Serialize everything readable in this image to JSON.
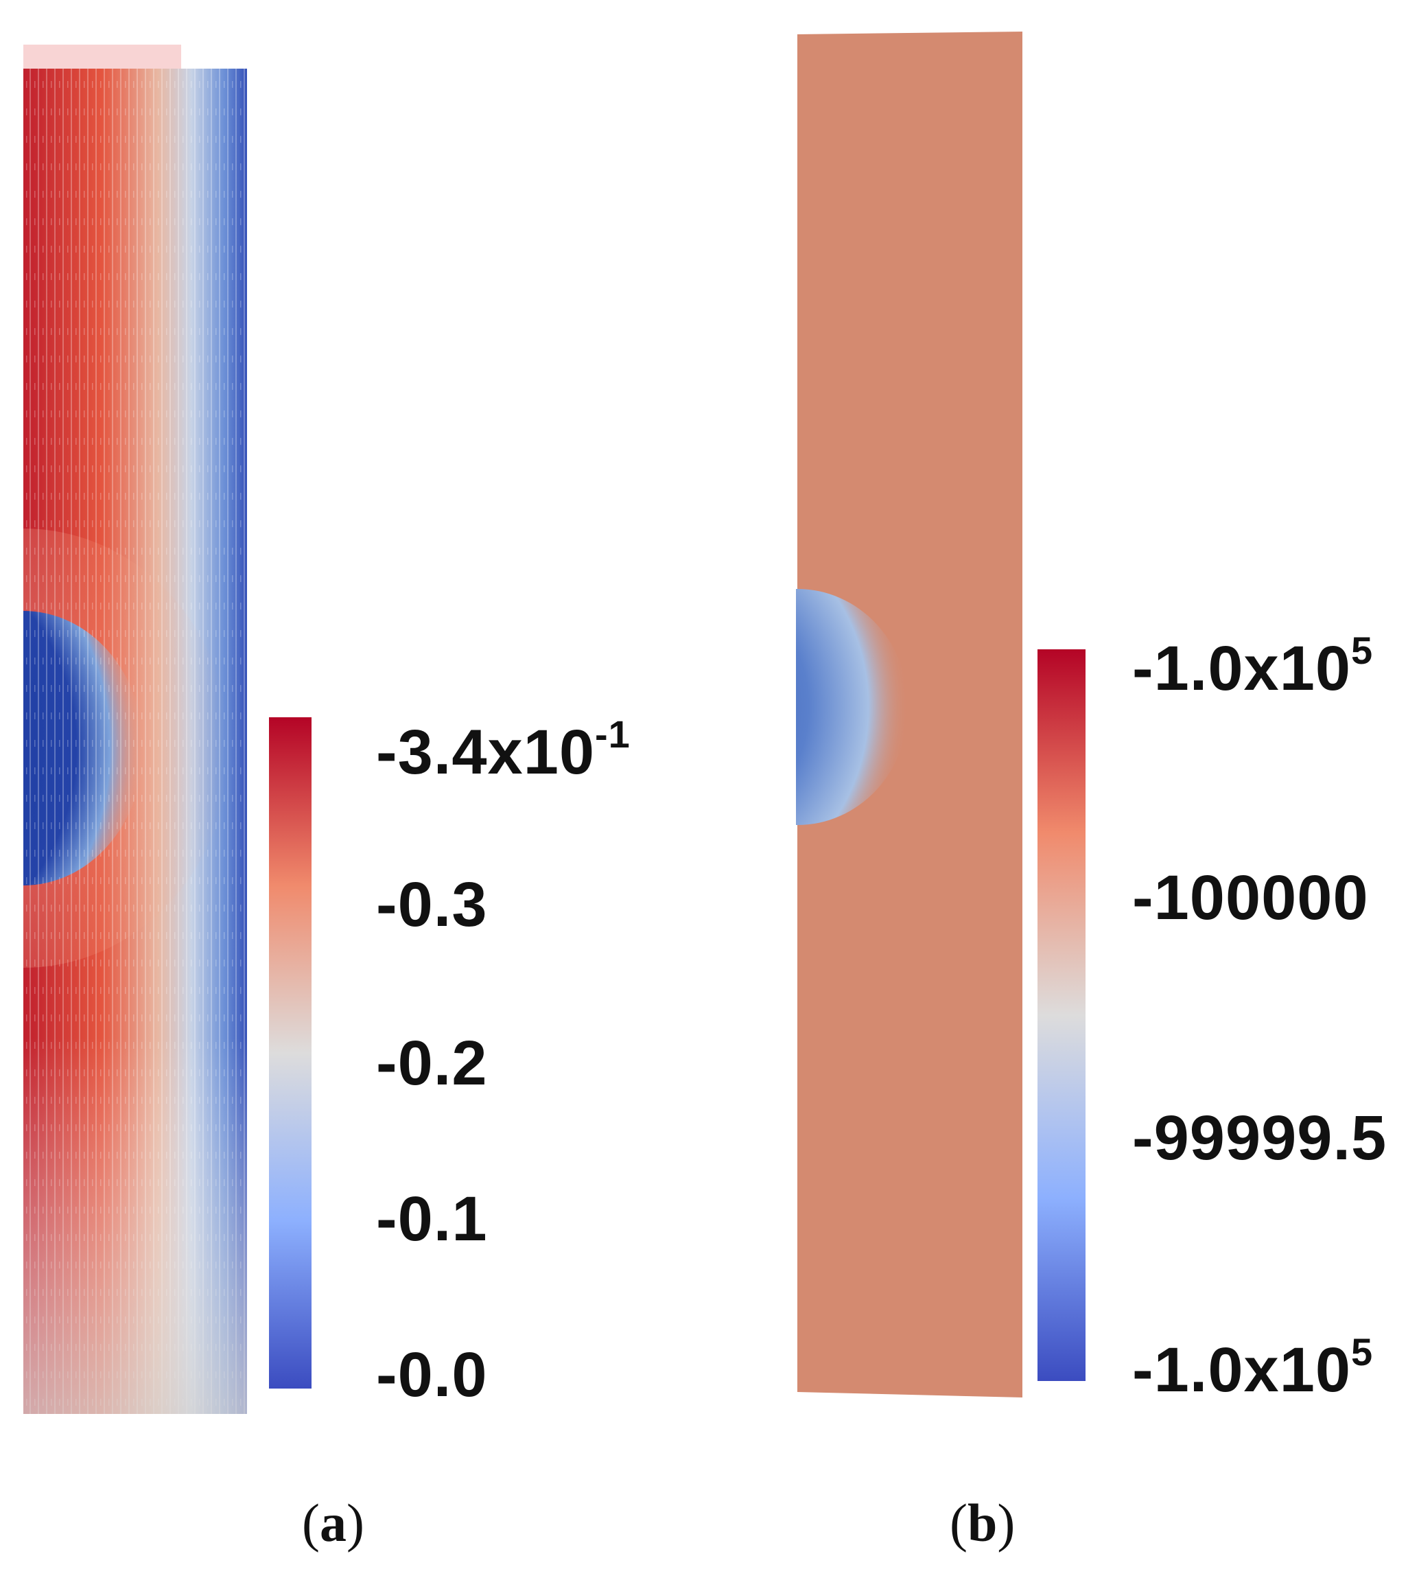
{
  "panels": [
    {
      "id": "a",
      "label_open": "(",
      "label_letter": "a",
      "label_close": ")",
      "colorbar": {
        "colors": {
          "max": "#b40426",
          "mid": "#dddcdc",
          "min": "#3b4cc0"
        },
        "ticks": [
          {
            "base": "-3.4x10",
            "exp": "-1"
          },
          {
            "base": "-0.3",
            "exp": ""
          },
          {
            "base": "-0.2",
            "exp": ""
          },
          {
            "base": "-0.1",
            "exp": ""
          },
          {
            "base": "-0.0",
            "exp": ""
          }
        ]
      }
    },
    {
      "id": "b",
      "label_open": "(",
      "label_letter": "b",
      "label_close": ")",
      "colorbar": {
        "colors": {
          "max": "#b40426",
          "mid": "#dddcdc",
          "min": "#3b4cc0"
        },
        "ticks": [
          {
            "base": "-1.0x10",
            "exp": "5"
          },
          {
            "base": "-100000",
            "exp": ""
          },
          {
            "base": "-99999.5",
            "exp": ""
          },
          {
            "base": "-1.0x10",
            "exp": "5"
          }
        ]
      }
    }
  ]
}
